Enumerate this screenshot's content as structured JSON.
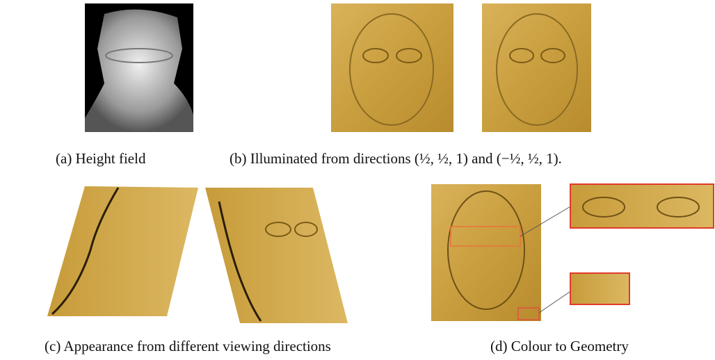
{
  "figure": {
    "captions": {
      "a": "(a) Height field",
      "b": "(b) Illuminated from directions (½, ½, 1) and (−½, ½, 1).",
      "c": "(c) Appearance from different viewing directions",
      "d": "(d) Colour to Geometry"
    }
  }
}
